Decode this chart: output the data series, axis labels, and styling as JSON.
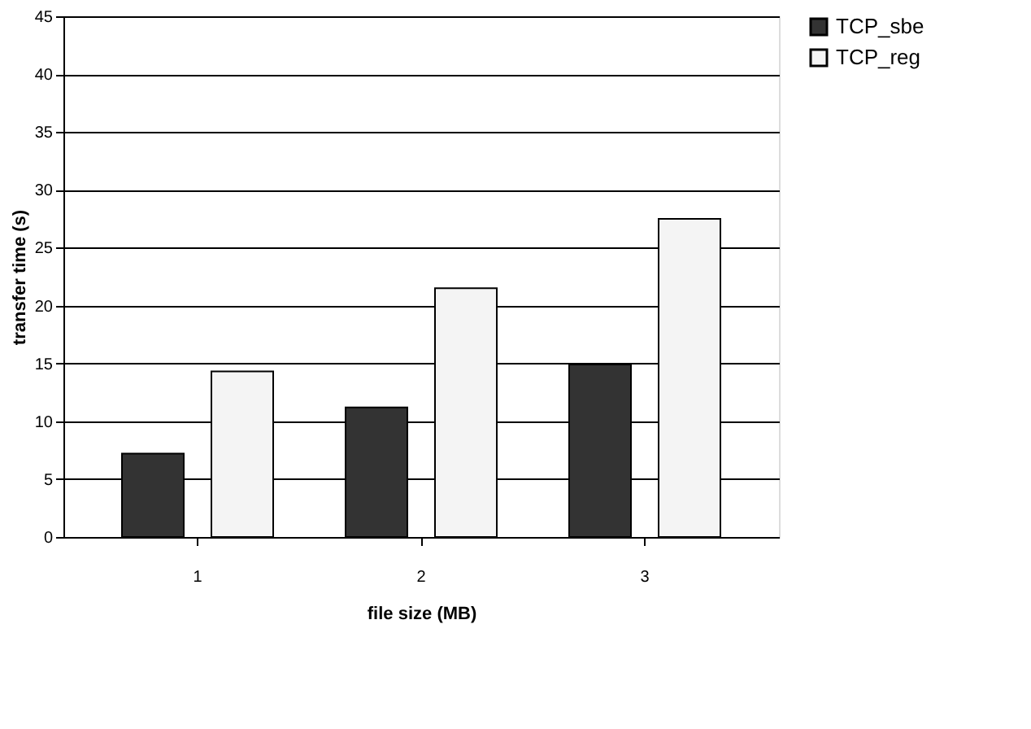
{
  "chart_data": {
    "type": "bar",
    "xlabel": "file size (MB)",
    "ylabel": "transfer time (s)",
    "categories": [
      "1",
      "2",
      "3"
    ],
    "series": [
      {
        "name": "TCP_sbe",
        "color": "#333333",
        "values": [
          7.2,
          11.2,
          14.9
        ]
      },
      {
        "name": "TCP_reg",
        "color": "#f4f4f4",
        "values": [
          14.3,
          21.5,
          27.5
        ]
      }
    ],
    "ylim": [
      0,
      45
    ],
    "yticks": [
      0,
      5,
      10,
      15,
      20,
      25,
      30,
      35,
      40,
      45
    ],
    "grid": "y",
    "legend": "right"
  }
}
